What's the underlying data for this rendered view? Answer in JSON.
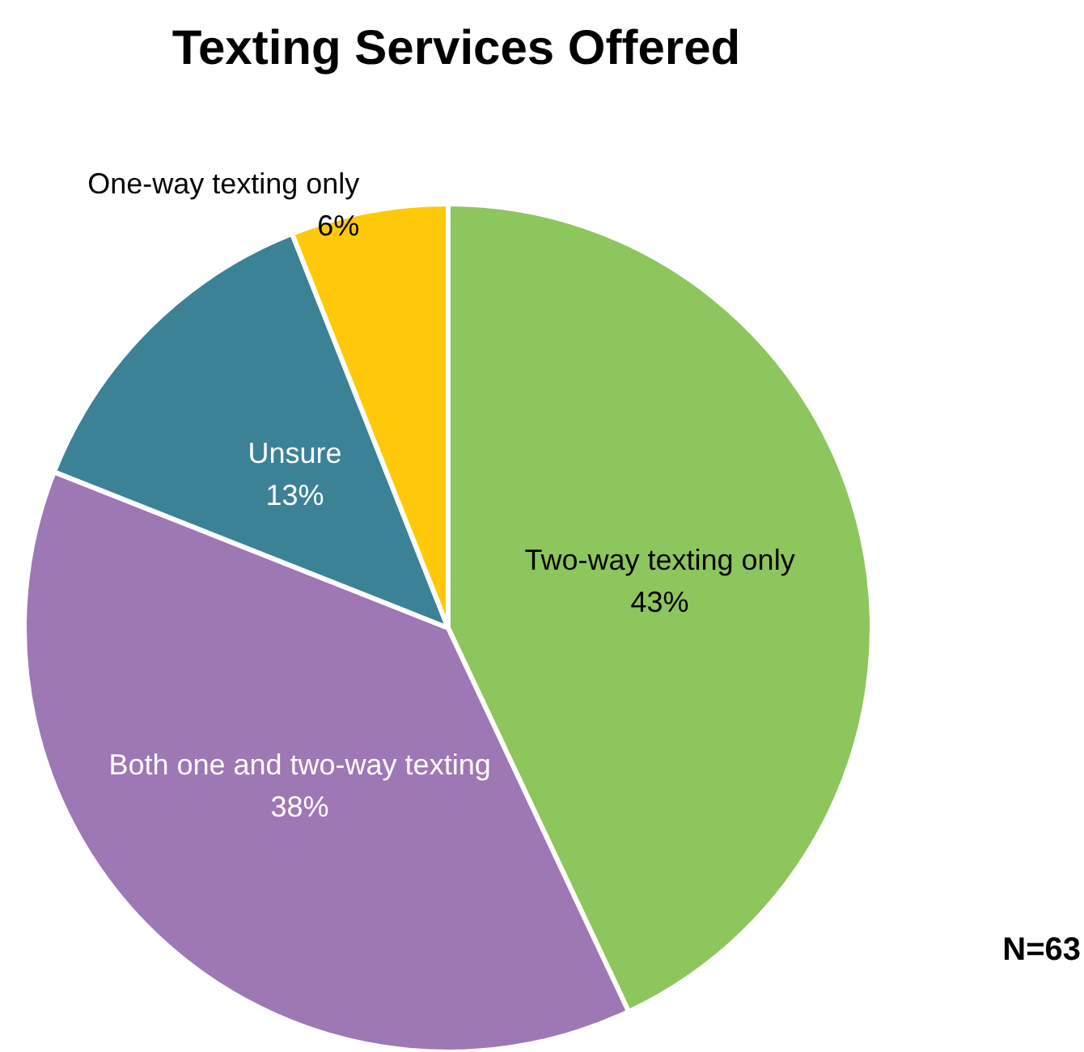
{
  "chart_data": {
    "type": "pie",
    "title": "Texting Services Offered",
    "categories": [
      "Two-way texting only",
      "Both one and two-way texting",
      "Unsure",
      "One-way texting only"
    ],
    "values": [
      43,
      38,
      13,
      6
    ],
    "value_labels": [
      "43%",
      "38%",
      "13%",
      "6%"
    ],
    "colors": [
      "#8dc65c",
      "#9e77b5",
      "#3b8297",
      "#ffc90a"
    ],
    "legend": false,
    "annotations": [
      "N=63"
    ]
  }
}
